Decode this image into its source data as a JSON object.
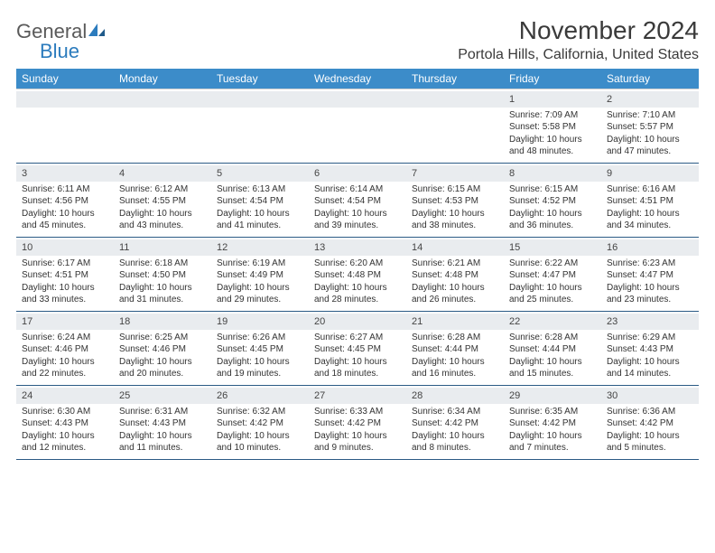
{
  "brand": {
    "word1": "General",
    "word2": "Blue"
  },
  "title": "November 2024",
  "location": "Portola Hills, California, United States",
  "colors": {
    "header_bg": "#3c8cc9",
    "header_text": "#ffffff",
    "daynum_bg": "#e9ecef",
    "border": "#2b5a85",
    "logo_blue": "#2b7bbd",
    "text": "#333333"
  },
  "weekdays": [
    "Sunday",
    "Monday",
    "Tuesday",
    "Wednesday",
    "Thursday",
    "Friday",
    "Saturday"
  ],
  "weeks": [
    [
      {
        "n": "",
        "lines": []
      },
      {
        "n": "",
        "lines": []
      },
      {
        "n": "",
        "lines": []
      },
      {
        "n": "",
        "lines": []
      },
      {
        "n": "",
        "lines": []
      },
      {
        "n": "1",
        "lines": [
          "Sunrise: 7:09 AM",
          "Sunset: 5:58 PM",
          "Daylight: 10 hours and 48 minutes."
        ]
      },
      {
        "n": "2",
        "lines": [
          "Sunrise: 7:10 AM",
          "Sunset: 5:57 PM",
          "Daylight: 10 hours and 47 minutes."
        ]
      }
    ],
    [
      {
        "n": "3",
        "lines": [
          "Sunrise: 6:11 AM",
          "Sunset: 4:56 PM",
          "Daylight: 10 hours and 45 minutes."
        ]
      },
      {
        "n": "4",
        "lines": [
          "Sunrise: 6:12 AM",
          "Sunset: 4:55 PM",
          "Daylight: 10 hours and 43 minutes."
        ]
      },
      {
        "n": "5",
        "lines": [
          "Sunrise: 6:13 AM",
          "Sunset: 4:54 PM",
          "Daylight: 10 hours and 41 minutes."
        ]
      },
      {
        "n": "6",
        "lines": [
          "Sunrise: 6:14 AM",
          "Sunset: 4:54 PM",
          "Daylight: 10 hours and 39 minutes."
        ]
      },
      {
        "n": "7",
        "lines": [
          "Sunrise: 6:15 AM",
          "Sunset: 4:53 PM",
          "Daylight: 10 hours and 38 minutes."
        ]
      },
      {
        "n": "8",
        "lines": [
          "Sunrise: 6:15 AM",
          "Sunset: 4:52 PM",
          "Daylight: 10 hours and 36 minutes."
        ]
      },
      {
        "n": "9",
        "lines": [
          "Sunrise: 6:16 AM",
          "Sunset: 4:51 PM",
          "Daylight: 10 hours and 34 minutes."
        ]
      }
    ],
    [
      {
        "n": "10",
        "lines": [
          "Sunrise: 6:17 AM",
          "Sunset: 4:51 PM",
          "Daylight: 10 hours and 33 minutes."
        ]
      },
      {
        "n": "11",
        "lines": [
          "Sunrise: 6:18 AM",
          "Sunset: 4:50 PM",
          "Daylight: 10 hours and 31 minutes."
        ]
      },
      {
        "n": "12",
        "lines": [
          "Sunrise: 6:19 AM",
          "Sunset: 4:49 PM",
          "Daylight: 10 hours and 29 minutes."
        ]
      },
      {
        "n": "13",
        "lines": [
          "Sunrise: 6:20 AM",
          "Sunset: 4:48 PM",
          "Daylight: 10 hours and 28 minutes."
        ]
      },
      {
        "n": "14",
        "lines": [
          "Sunrise: 6:21 AM",
          "Sunset: 4:48 PM",
          "Daylight: 10 hours and 26 minutes."
        ]
      },
      {
        "n": "15",
        "lines": [
          "Sunrise: 6:22 AM",
          "Sunset: 4:47 PM",
          "Daylight: 10 hours and 25 minutes."
        ]
      },
      {
        "n": "16",
        "lines": [
          "Sunrise: 6:23 AM",
          "Sunset: 4:47 PM",
          "Daylight: 10 hours and 23 minutes."
        ]
      }
    ],
    [
      {
        "n": "17",
        "lines": [
          "Sunrise: 6:24 AM",
          "Sunset: 4:46 PM",
          "Daylight: 10 hours and 22 minutes."
        ]
      },
      {
        "n": "18",
        "lines": [
          "Sunrise: 6:25 AM",
          "Sunset: 4:46 PM",
          "Daylight: 10 hours and 20 minutes."
        ]
      },
      {
        "n": "19",
        "lines": [
          "Sunrise: 6:26 AM",
          "Sunset: 4:45 PM",
          "Daylight: 10 hours and 19 minutes."
        ]
      },
      {
        "n": "20",
        "lines": [
          "Sunrise: 6:27 AM",
          "Sunset: 4:45 PM",
          "Daylight: 10 hours and 18 minutes."
        ]
      },
      {
        "n": "21",
        "lines": [
          "Sunrise: 6:28 AM",
          "Sunset: 4:44 PM",
          "Daylight: 10 hours and 16 minutes."
        ]
      },
      {
        "n": "22",
        "lines": [
          "Sunrise: 6:28 AM",
          "Sunset: 4:44 PM",
          "Daylight: 10 hours and 15 minutes."
        ]
      },
      {
        "n": "23",
        "lines": [
          "Sunrise: 6:29 AM",
          "Sunset: 4:43 PM",
          "Daylight: 10 hours and 14 minutes."
        ]
      }
    ],
    [
      {
        "n": "24",
        "lines": [
          "Sunrise: 6:30 AM",
          "Sunset: 4:43 PM",
          "Daylight: 10 hours and 12 minutes."
        ]
      },
      {
        "n": "25",
        "lines": [
          "Sunrise: 6:31 AM",
          "Sunset: 4:43 PM",
          "Daylight: 10 hours and 11 minutes."
        ]
      },
      {
        "n": "26",
        "lines": [
          "Sunrise: 6:32 AM",
          "Sunset: 4:42 PM",
          "Daylight: 10 hours and 10 minutes."
        ]
      },
      {
        "n": "27",
        "lines": [
          "Sunrise: 6:33 AM",
          "Sunset: 4:42 PM",
          "Daylight: 10 hours and 9 minutes."
        ]
      },
      {
        "n": "28",
        "lines": [
          "Sunrise: 6:34 AM",
          "Sunset: 4:42 PM",
          "Daylight: 10 hours and 8 minutes."
        ]
      },
      {
        "n": "29",
        "lines": [
          "Sunrise: 6:35 AM",
          "Sunset: 4:42 PM",
          "Daylight: 10 hours and 7 minutes."
        ]
      },
      {
        "n": "30",
        "lines": [
          "Sunrise: 6:36 AM",
          "Sunset: 4:42 PM",
          "Daylight: 10 hours and 5 minutes."
        ]
      }
    ]
  ]
}
